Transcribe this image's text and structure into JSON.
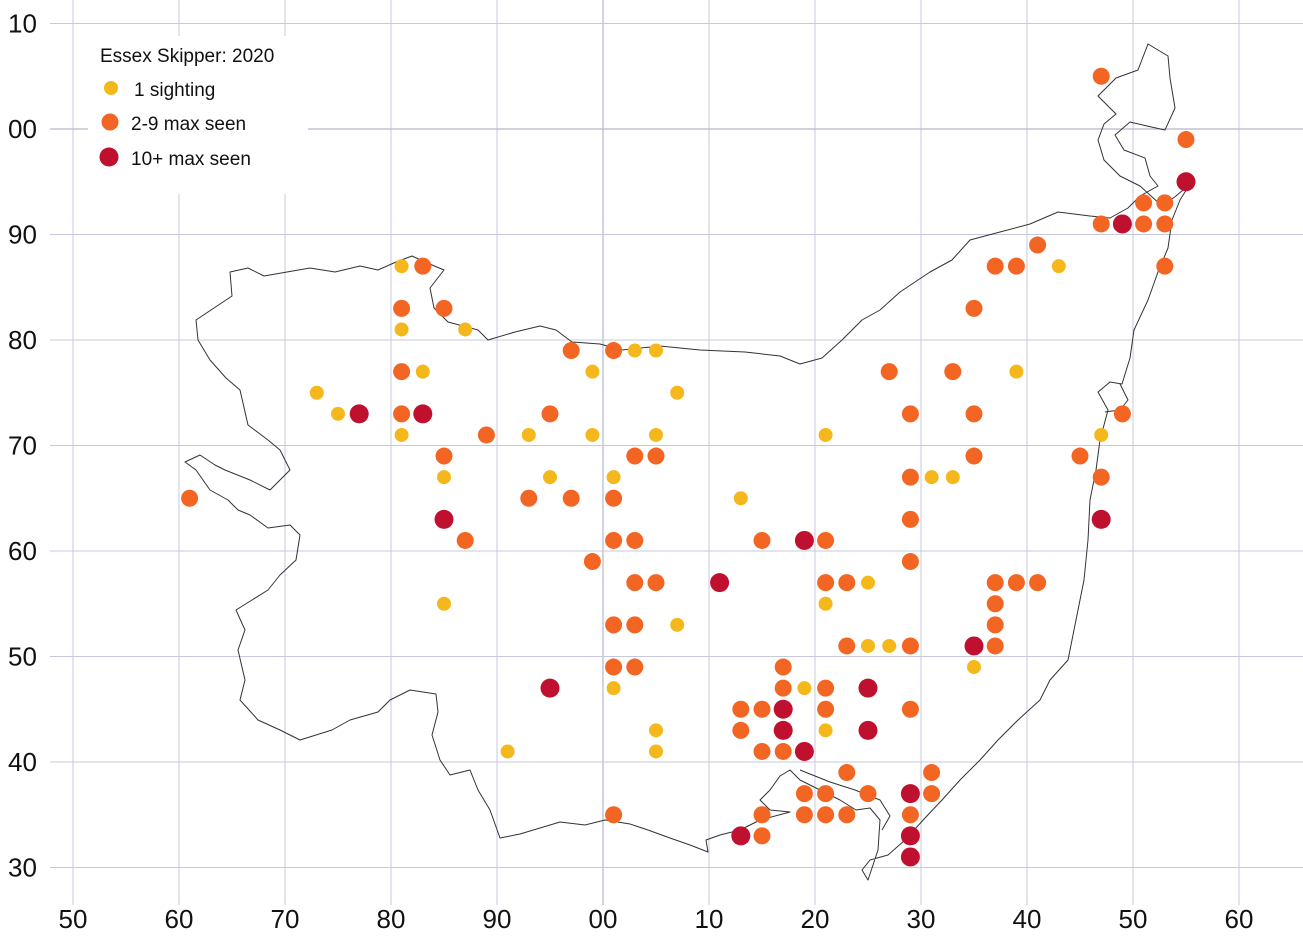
{
  "legend": {
    "title": "Essex Skipper:  2020",
    "items": [
      {
        "label": "1 sighting",
        "key": "one",
        "color": "#f5b81c"
      },
      {
        "label": "2-9 max seen",
        "key": "mid",
        "color": "#f26522"
      },
      {
        "label": "10+ max seen",
        "key": "high",
        "color": "#c0102f"
      }
    ]
  },
  "axes": {
    "x_ticks": [
      "50",
      "60",
      "70",
      "80",
      "90",
      "00",
      "10",
      "20",
      "30",
      "40",
      "50",
      "60"
    ],
    "y_ticks": [
      "10",
      "00",
      "90",
      "80",
      "70",
      "60",
      "50",
      "40",
      "30"
    ]
  },
  "colors": {
    "grid": "#c8c8dc",
    "boundary": "#333333"
  },
  "sightings": [
    {
      "x": 47,
      "y": 105,
      "c": "mid"
    },
    {
      "x": 55,
      "y": 99,
      "c": "mid"
    },
    {
      "x": 55,
      "y": 95,
      "c": "high"
    },
    {
      "x": 51,
      "y": 93,
      "c": "mid"
    },
    {
      "x": 53,
      "y": 93,
      "c": "mid"
    },
    {
      "x": 47,
      "y": 91,
      "c": "mid"
    },
    {
      "x": 49,
      "y": 91,
      "c": "high"
    },
    {
      "x": 51,
      "y": 91,
      "c": "mid"
    },
    {
      "x": 53,
      "y": 91,
      "c": "mid"
    },
    {
      "x": 41,
      "y": 89,
      "c": "mid"
    },
    {
      "x": 37,
      "y": 87,
      "c": "mid"
    },
    {
      "x": 39,
      "y": 87,
      "c": "mid"
    },
    {
      "x": 43,
      "y": 87,
      "c": "one"
    },
    {
      "x": 53,
      "y": 87,
      "c": "mid"
    },
    {
      "x": 35,
      "y": 83,
      "c": "mid"
    },
    {
      "x": 27,
      "y": 77,
      "c": "mid"
    },
    {
      "x": 33,
      "y": 77,
      "c": "mid"
    },
    {
      "x": 39,
      "y": 77,
      "c": "one"
    },
    {
      "x": 29,
      "y": 73,
      "c": "mid"
    },
    {
      "x": 35,
      "y": 73,
      "c": "mid"
    },
    {
      "x": 49,
      "y": 73,
      "c": "mid"
    },
    {
      "x": 47,
      "y": 71,
      "c": "one"
    },
    {
      "x": 35,
      "y": 69,
      "c": "mid"
    },
    {
      "x": 45,
      "y": 69,
      "c": "mid"
    },
    {
      "x": 29,
      "y": 67,
      "c": "mid"
    },
    {
      "x": 31,
      "y": 67,
      "c": "one"
    },
    {
      "x": 33,
      "y": 67,
      "c": "one"
    },
    {
      "x": 47,
      "y": 67,
      "c": "mid"
    },
    {
      "x": 29,
      "y": 63,
      "c": "mid"
    },
    {
      "x": 47,
      "y": 63,
      "c": "high"
    },
    {
      "x": 29,
      "y": 59,
      "c": "mid"
    },
    {
      "x": 37,
      "y": 57,
      "c": "mid"
    },
    {
      "x": 39,
      "y": 57,
      "c": "mid"
    },
    {
      "x": 41,
      "y": 57,
      "c": "mid"
    },
    {
      "x": 37,
      "y": 55,
      "c": "mid"
    },
    {
      "x": 37,
      "y": 53,
      "c": "mid"
    },
    {
      "x": 35,
      "y": 51,
      "c": "high"
    },
    {
      "x": 37,
      "y": 51,
      "c": "mid"
    },
    {
      "x": 35,
      "y": 49,
      "c": "one"
    },
    {
      "x": 29,
      "y": 51,
      "c": "mid"
    },
    {
      "x": 29,
      "y": 45,
      "c": "mid"
    },
    {
      "x": 31,
      "y": 39,
      "c": "mid"
    },
    {
      "x": 29,
      "y": 37,
      "c": "high"
    },
    {
      "x": 31,
      "y": 37,
      "c": "mid"
    },
    {
      "x": 29,
      "y": 35,
      "c": "mid"
    },
    {
      "x": 29,
      "y": 33,
      "c": "high"
    },
    {
      "x": 29,
      "y": 31,
      "c": "high"
    },
    {
      "x": 25,
      "y": 57,
      "c": "one"
    },
    {
      "x": 23,
      "y": 57,
      "c": "mid"
    },
    {
      "x": 21,
      "y": 57,
      "c": "mid"
    },
    {
      "x": 21,
      "y": 55,
      "c": "one"
    },
    {
      "x": 23,
      "y": 51,
      "c": "mid"
    },
    {
      "x": 25,
      "y": 51,
      "c": "one"
    },
    {
      "x": 27,
      "y": 51,
      "c": "one"
    },
    {
      "x": 21,
      "y": 61,
      "c": "mid"
    },
    {
      "x": 19,
      "y": 61,
      "c": "high"
    },
    {
      "x": 21,
      "y": 71,
      "c": "one"
    },
    {
      "x": 15,
      "y": 61,
      "c": "mid"
    },
    {
      "x": 13,
      "y": 65,
      "c": "one"
    },
    {
      "x": 11,
      "y": 57,
      "c": "high"
    },
    {
      "x": 17,
      "y": 49,
      "c": "mid"
    },
    {
      "x": 17,
      "y": 47,
      "c": "mid"
    },
    {
      "x": 19,
      "y": 47,
      "c": "one"
    },
    {
      "x": 21,
      "y": 47,
      "c": "mid"
    },
    {
      "x": 25,
      "y": 47,
      "c": "high"
    },
    {
      "x": 13,
      "y": 45,
      "c": "mid"
    },
    {
      "x": 15,
      "y": 45,
      "c": "mid"
    },
    {
      "x": 17,
      "y": 45,
      "c": "high"
    },
    {
      "x": 21,
      "y": 45,
      "c": "mid"
    },
    {
      "x": 13,
      "y": 43,
      "c": "mid"
    },
    {
      "x": 17,
      "y": 43,
      "c": "high"
    },
    {
      "x": 21,
      "y": 43,
      "c": "one"
    },
    {
      "x": 25,
      "y": 43,
      "c": "high"
    },
    {
      "x": 15,
      "y": 41,
      "c": "mid"
    },
    {
      "x": 17,
      "y": 41,
      "c": "mid"
    },
    {
      "x": 19,
      "y": 41,
      "c": "high"
    },
    {
      "x": 23,
      "y": 39,
      "c": "mid"
    },
    {
      "x": 19,
      "y": 37,
      "c": "mid"
    },
    {
      "x": 21,
      "y": 37,
      "c": "mid"
    },
    {
      "x": 25,
      "y": 37,
      "c": "mid"
    },
    {
      "x": 15,
      "y": 35,
      "c": "mid"
    },
    {
      "x": 19,
      "y": 35,
      "c": "mid"
    },
    {
      "x": 21,
      "y": 35,
      "c": "mid"
    },
    {
      "x": 23,
      "y": 35,
      "c": "mid"
    },
    {
      "x": 13,
      "y": 33,
      "c": "high"
    },
    {
      "x": 15,
      "y": 33,
      "c": "mid"
    },
    {
      "x": 1,
      "y": 79,
      "c": "mid"
    },
    {
      "x": 3,
      "y": 79,
      "c": "one"
    },
    {
      "x": 5,
      "y": 79,
      "c": "one"
    },
    {
      "x": 7,
      "y": 75,
      "c": "one"
    },
    {
      "x": 5,
      "y": 71,
      "c": "one"
    },
    {
      "x": 3,
      "y": 69,
      "c": "mid"
    },
    {
      "x": 5,
      "y": 69,
      "c": "mid"
    },
    {
      "x": 1,
      "y": 67,
      "c": "one"
    },
    {
      "x": 1,
      "y": 65,
      "c": "mid"
    },
    {
      "x": 1,
      "y": 61,
      "c": "mid"
    },
    {
      "x": 3,
      "y": 61,
      "c": "mid"
    },
    {
      "x": 3,
      "y": 57,
      "c": "mid"
    },
    {
      "x": 5,
      "y": 57,
      "c": "mid"
    },
    {
      "x": 1,
      "y": 53,
      "c": "mid"
    },
    {
      "x": 3,
      "y": 53,
      "c": "mid"
    },
    {
      "x": 7,
      "y": 53,
      "c": "one"
    },
    {
      "x": 1,
      "y": 49,
      "c": "mid"
    },
    {
      "x": 3,
      "y": 49,
      "c": "mid"
    },
    {
      "x": 1,
      "y": 47,
      "c": "one"
    },
    {
      "x": 5,
      "y": 43,
      "c": "one"
    },
    {
      "x": 5,
      "y": 41,
      "c": "one"
    },
    {
      "x": 1,
      "y": 35,
      "c": "mid"
    },
    {
      "x": -3,
      "y": 79,
      "c": "mid"
    },
    {
      "x": -1,
      "y": 77,
      "c": "one"
    },
    {
      "x": -5,
      "y": 73,
      "c": "mid"
    },
    {
      "x": -7,
      "y": 71,
      "c": "one"
    },
    {
      "x": -1,
      "y": 71,
      "c": "one"
    },
    {
      "x": -5,
      "y": 67,
      "c": "one"
    },
    {
      "x": -7,
      "y": 65,
      "c": "mid"
    },
    {
      "x": -3,
      "y": 65,
      "c": "mid"
    },
    {
      "x": -1,
      "y": 59,
      "c": "mid"
    },
    {
      "x": -5,
      "y": 47,
      "c": "high"
    },
    {
      "x": -9,
      "y": 41,
      "c": "one"
    },
    {
      "x": -11,
      "y": 71,
      "c": "mid"
    },
    {
      "x": -19,
      "y": 87,
      "c": "one"
    },
    {
      "x": -17,
      "y": 87,
      "c": "mid"
    },
    {
      "x": -19,
      "y": 83,
      "c": "mid"
    },
    {
      "x": -15,
      "y": 83,
      "c": "mid"
    },
    {
      "x": -19,
      "y": 81,
      "c": "one"
    },
    {
      "x": -13,
      "y": 81,
      "c": "one"
    },
    {
      "x": -19,
      "y": 77,
      "c": "mid"
    },
    {
      "x": -17,
      "y": 77,
      "c": "one"
    },
    {
      "x": -27,
      "y": 75,
      "c": "one"
    },
    {
      "x": -25,
      "y": 73,
      "c": "one"
    },
    {
      "x": -23,
      "y": 73,
      "c": "high"
    },
    {
      "x": -19,
      "y": 73,
      "c": "mid"
    },
    {
      "x": -17,
      "y": 73,
      "c": "high"
    },
    {
      "x": -19,
      "y": 71,
      "c": "one"
    },
    {
      "x": -15,
      "y": 69,
      "c": "mid"
    },
    {
      "x": -15,
      "y": 67,
      "c": "one"
    },
    {
      "x": -15,
      "y": 63,
      "c": "high"
    },
    {
      "x": -13,
      "y": 61,
      "c": "mid"
    },
    {
      "x": -15,
      "y": 55,
      "c": "one"
    },
    {
      "x": -39,
      "y": 65,
      "c": "mid"
    }
  ]
}
